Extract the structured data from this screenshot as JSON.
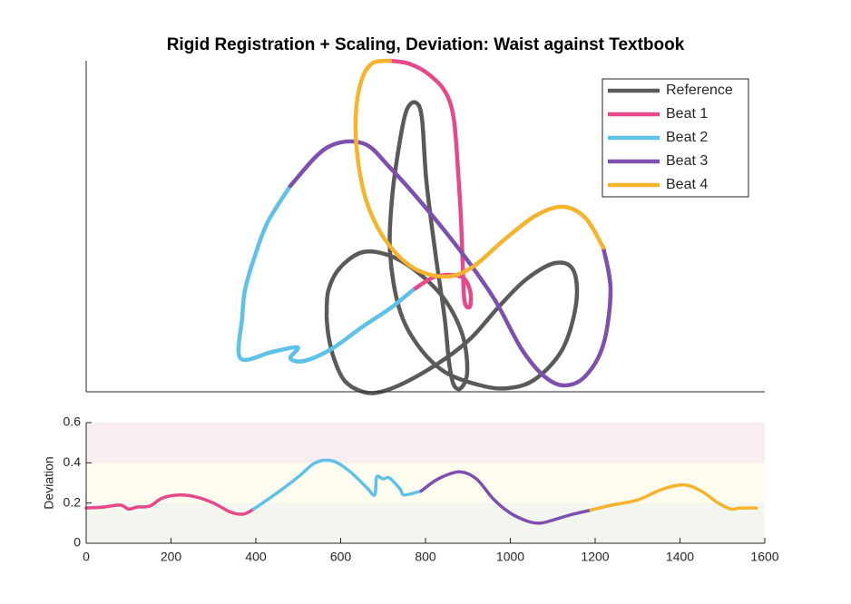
{
  "chart_data": [
    {
      "type": "line",
      "title": "Rigid Registration + Scaling, Deviation: Waist against Textbook",
      "xlim": [
        0,
        748
      ],
      "ylim": [
        0,
        365
      ],
      "legend": "upper right",
      "series": [
        {
          "name": "Reference",
          "color": "#5a5a5a",
          "x": [
            265,
            267,
            280,
            305,
            335,
            365,
            395,
            415,
            420,
            413,
            405,
            400,
            395,
            385,
            375,
            370,
            363,
            353,
            345,
            337,
            335,
            345,
            365,
            395,
            435,
            465,
            495,
            525,
            540,
            537,
            517,
            485,
            455,
            425,
            395,
            355,
            325,
            305,
            285,
            273,
            267,
            265
          ],
          "values": [
            84,
            112,
            137,
            154,
            150,
            132,
            102,
            62,
            22,
            4,
            8,
            32,
            82,
            152,
            232,
            302,
            319,
            310,
            272,
            212,
            152,
            92,
            52,
            22,
            7,
            4,
            14,
            47,
            97,
            134,
            142,
            124,
            94,
            60,
            36,
            12,
            0,
            0,
            12,
            37,
            62,
            82
          ]
        },
        {
          "name": "Beat 1",
          "color": "#e8488a",
          "x": [
            360,
            385,
            413,
            423,
            423,
            417,
            415,
            413,
            410,
            405,
            395,
            375,
            355,
            335
          ],
          "values": [
            112,
            127,
            127,
            112,
            94,
            100,
            142,
            192,
            242,
            302,
            332,
            352,
            362,
            365
          ]
        },
        {
          "name": "Beat 2",
          "color": "#5ec1e8",
          "x": [
            225,
            200,
            185,
            175,
            172,
            170,
            205,
            233,
            225,
            240,
            270,
            305,
            335,
            360
          ],
          "values": [
            227,
            187,
            147,
            112,
            82,
            37,
            44,
            49,
            37,
            34,
            47,
            72,
            92,
            112
          ]
        },
        {
          "name": "Beat 3",
          "color": "#7d4fb0",
          "x": [
            570,
            578,
            570,
            550,
            527,
            505,
            480,
            450,
            415,
            375,
            335,
            305,
            265,
            225
          ],
          "values": [
            159,
            112,
            52,
            17,
            7,
            17,
            47,
            102,
            152,
            202,
            247,
            274,
            269,
            227
          ]
        },
        {
          "name": "Beat 4",
          "color": "#f7b32b",
          "x": [
            335,
            315,
            303,
            297,
            300,
            310,
            330,
            360,
            395,
            425,
            460,
            495,
            525,
            550,
            570
          ],
          "values": [
            365,
            362,
            342,
            302,
            252,
            207,
            167,
            137,
            127,
            137,
            167,
            194,
            204,
            192,
            159
          ]
        }
      ]
    },
    {
      "type": "line",
      "ylabel": "Deviation",
      "xlim": [
        0,
        1600
      ],
      "ylim": [
        0,
        0.6
      ],
      "xticks": [
        0,
        200,
        400,
        600,
        800,
        1000,
        1200,
        1400,
        1600
      ],
      "yticks": [
        0,
        0.2,
        0.4,
        0.6
      ],
      "bands": [
        {
          "range": [
            0,
            0.2
          ],
          "color": "#f2f6ee"
        },
        {
          "range": [
            0.2,
            0.4
          ],
          "color": "#fdfcef"
        },
        {
          "range": [
            0.4,
            0.6
          ],
          "color": "#f8eeef"
        }
      ],
      "series": [
        {
          "color": "#e8488a",
          "x": [
            0,
            40,
            80,
            100,
            120,
            150,
            180,
            220,
            260,
            300,
            340,
            370,
            395
          ],
          "values": [
            0.175,
            0.18,
            0.19,
            0.17,
            0.18,
            0.185,
            0.225,
            0.24,
            0.23,
            0.2,
            0.155,
            0.145,
            0.17
          ]
        },
        {
          "color": "#5ec1e8",
          "x": [
            395,
            450,
            500,
            540,
            580,
            620,
            660,
            680,
            685,
            700,
            715,
            740,
            750,
            790
          ],
          "values": [
            0.17,
            0.25,
            0.33,
            0.4,
            0.41,
            0.36,
            0.28,
            0.24,
            0.33,
            0.32,
            0.325,
            0.27,
            0.24,
            0.26
          ]
        },
        {
          "color": "#7d4fb0",
          "x": [
            790,
            830,
            880,
            920,
            960,
            1000,
            1040,
            1070,
            1100,
            1140,
            1190
          ],
          "values": [
            0.26,
            0.32,
            0.355,
            0.32,
            0.22,
            0.15,
            0.11,
            0.1,
            0.115,
            0.14,
            0.165
          ]
        },
        {
          "color": "#f7b32b",
          "x": [
            1190,
            1240,
            1300,
            1360,
            1410,
            1450,
            1490,
            1520,
            1540,
            1580
          ],
          "values": [
            0.165,
            0.19,
            0.215,
            0.27,
            0.29,
            0.26,
            0.2,
            0.17,
            0.175,
            0.175
          ]
        }
      ]
    }
  ]
}
